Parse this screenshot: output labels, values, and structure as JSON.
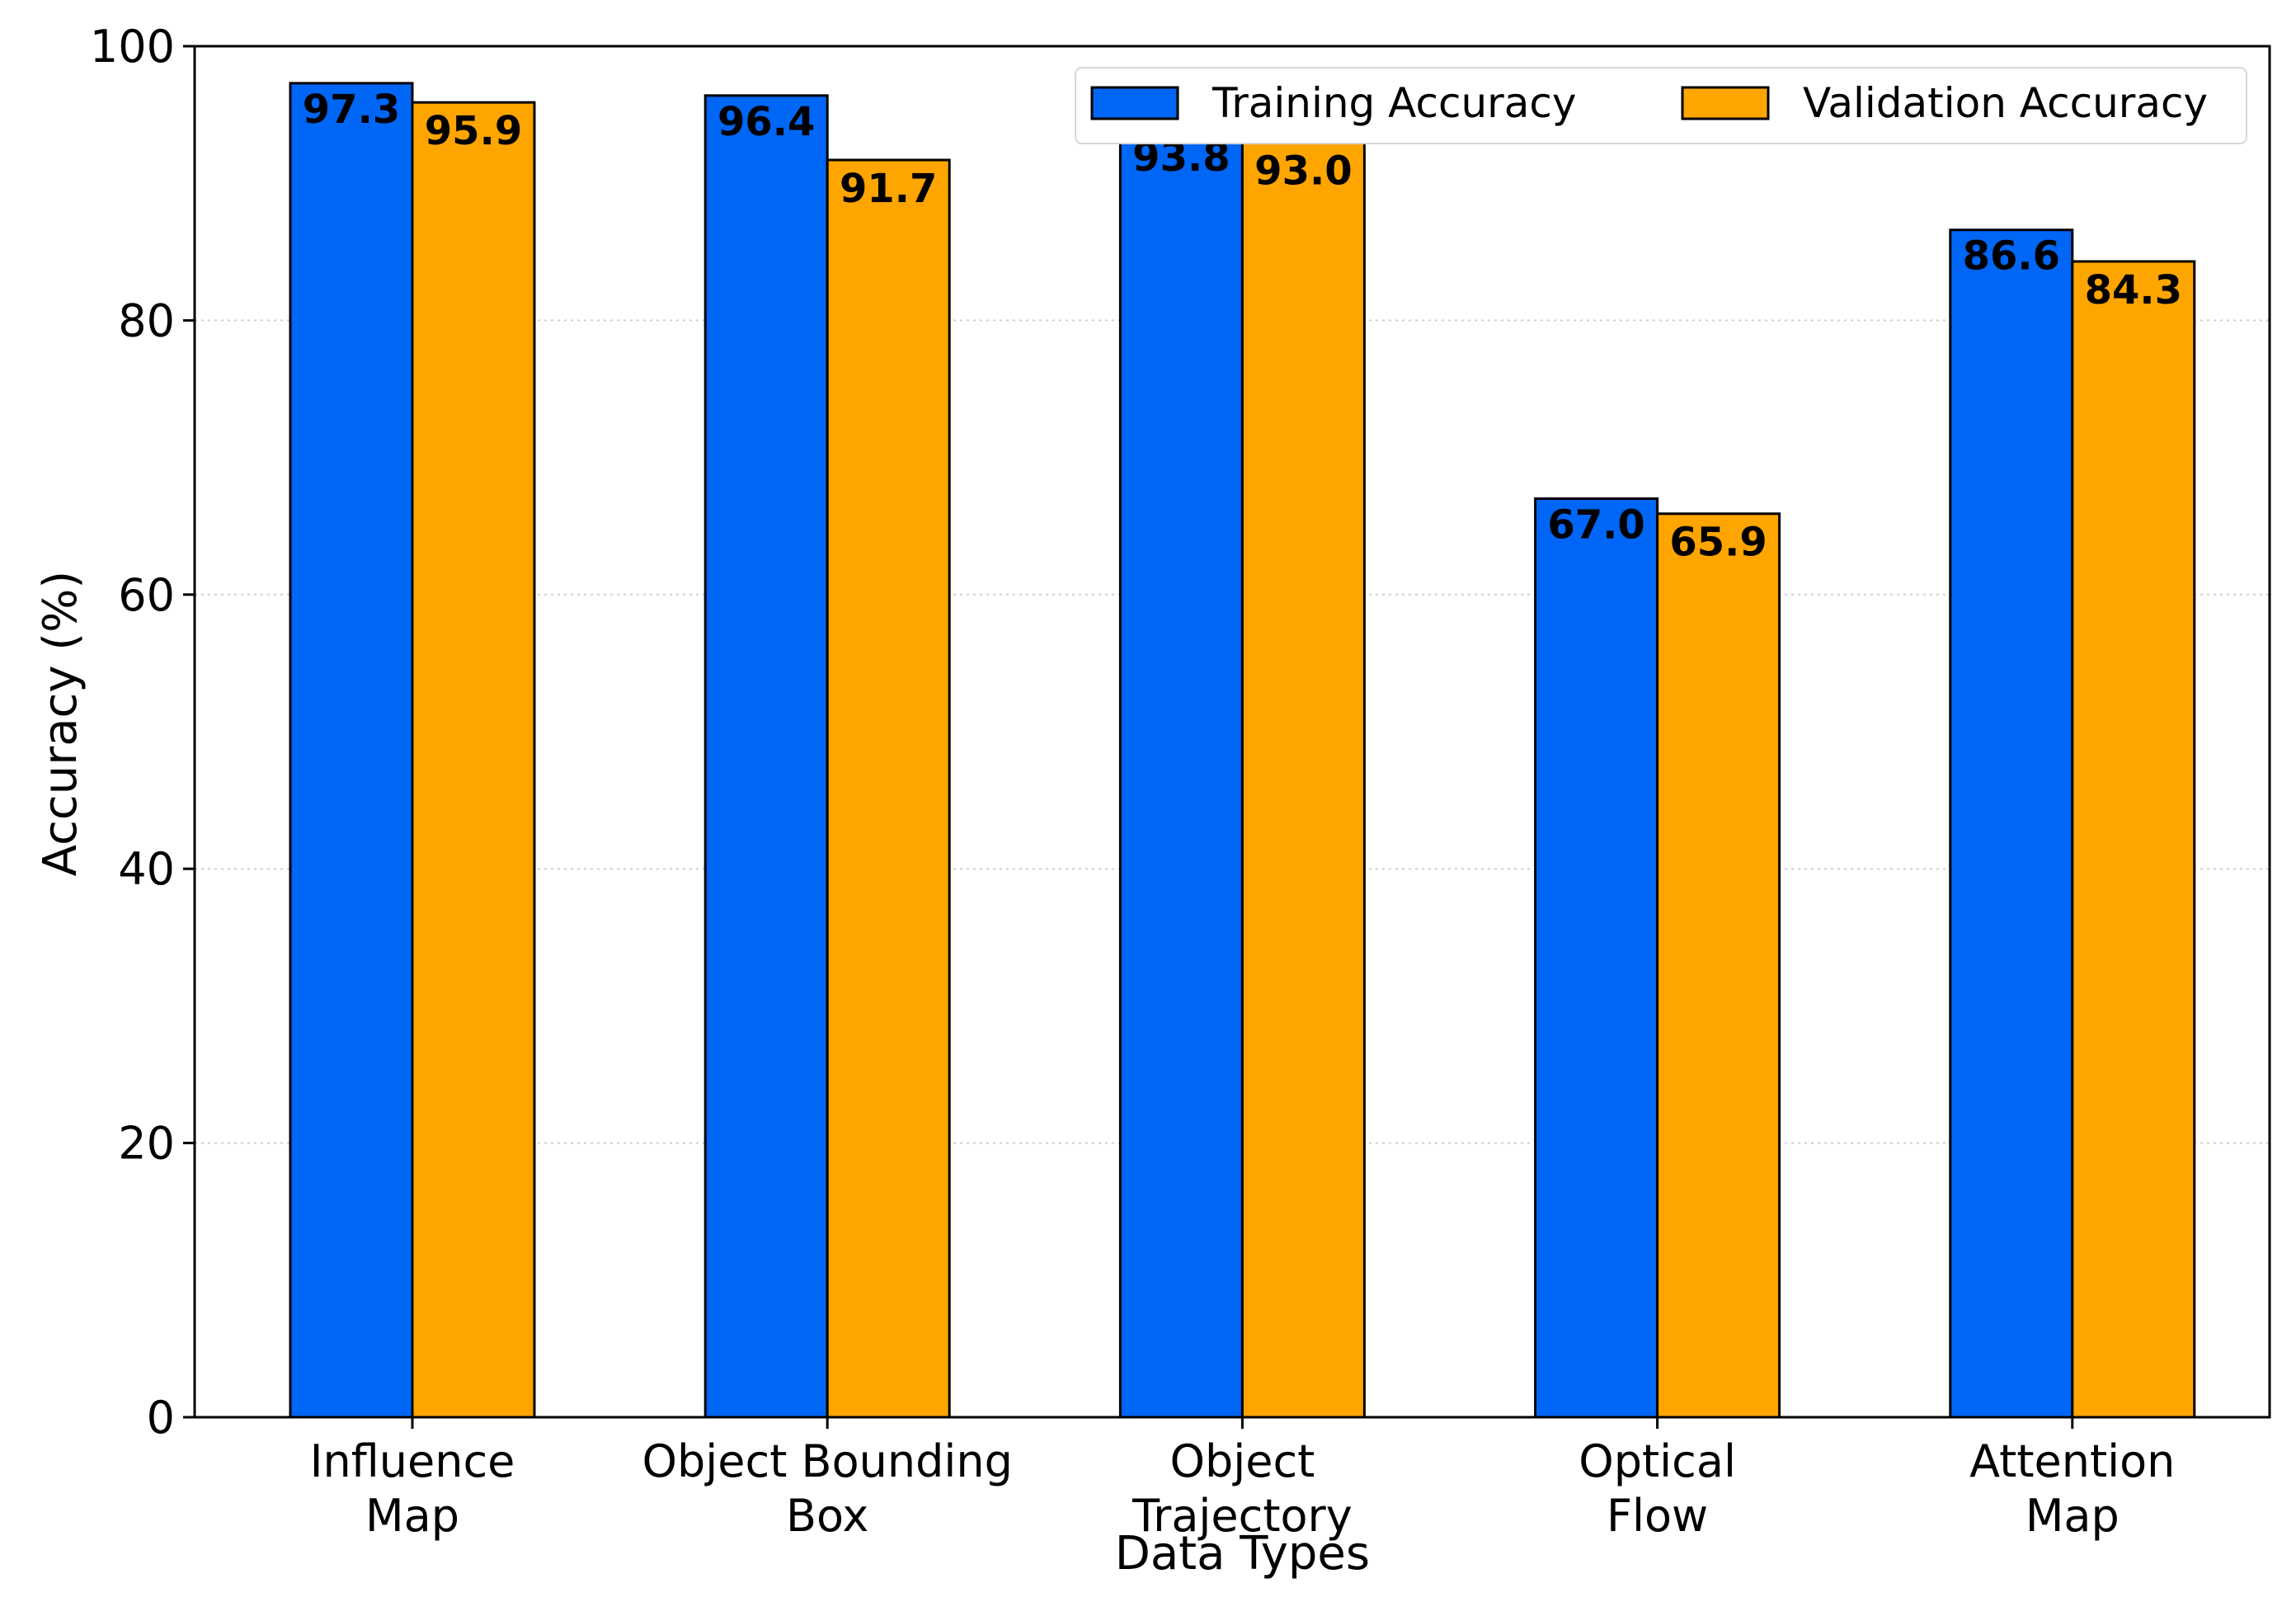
{
  "chart_data": {
    "type": "bar",
    "title": "",
    "xlabel": "Data Types",
    "ylabel": "Accuracy (%)",
    "categories": [
      [
        "Influence",
        "Map"
      ],
      [
        "Object Bounding",
        "Box"
      ],
      [
        "Object",
        "Trajectory"
      ],
      [
        "Optical",
        "Flow"
      ],
      [
        "Attention",
        "Map"
      ]
    ],
    "series": [
      {
        "name": "Training Accuracy",
        "color": "#0066f5",
        "values": [
          97.3,
          96.4,
          93.8,
          67.0,
          86.6
        ]
      },
      {
        "name": "Validation Accuracy",
        "color": "#ffa500",
        "values": [
          95.9,
          91.7,
          93.0,
          65.9,
          84.3
        ]
      }
    ],
    "ylim": [
      0,
      100
    ],
    "yticks": [
      0,
      20,
      40,
      60,
      80,
      100
    ],
    "grid": "y-dotted",
    "legend_position": "top-right"
  }
}
